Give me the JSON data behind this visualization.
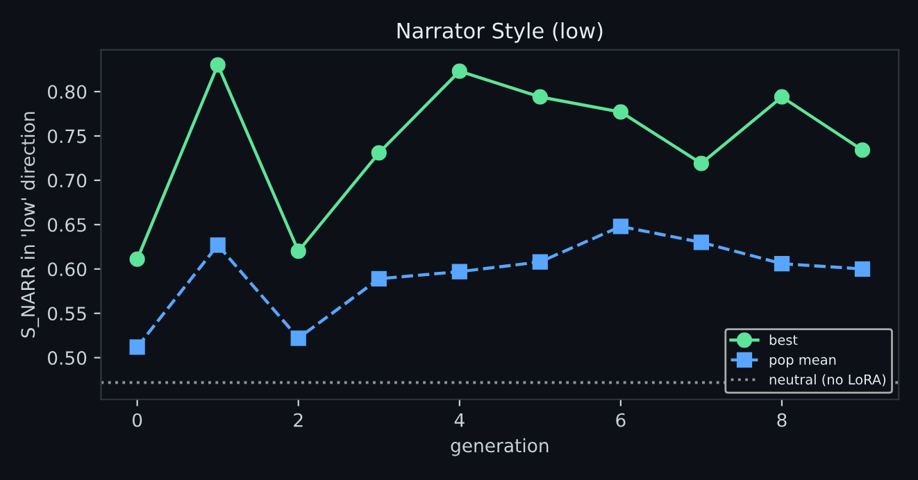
{
  "chart_data": {
    "type": "line",
    "title": "Narrator Style (low)",
    "xlabel": "generation",
    "ylabel": "S_NARR in 'low' direction",
    "x": [
      0,
      1,
      2,
      3,
      4,
      5,
      6,
      7,
      8,
      9
    ],
    "series": [
      {
        "name": "best",
        "color": "#5ee39a",
        "marker": "circle",
        "line_style": "solid",
        "values": [
          0.611,
          0.83,
          0.62,
          0.731,
          0.823,
          0.794,
          0.777,
          0.719,
          0.794,
          0.734
        ]
      },
      {
        "name": "pop mean",
        "color": "#58a6ff",
        "marker": "square",
        "line_style": "dashed",
        "values": [
          0.512,
          0.627,
          0.522,
          0.589,
          0.597,
          0.608,
          0.648,
          0.63,
          0.606,
          0.6
        ]
      }
    ],
    "ref_lines": [
      {
        "axis": "y",
        "value": 0.472,
        "label": "neutral (no LoRA)",
        "color": "#8b949e",
        "line_style": "dotted"
      }
    ],
    "xlim": [
      -0.45,
      9.45
    ],
    "ylim": [
      0.453,
      0.847
    ],
    "xticks": [
      0,
      2,
      4,
      6,
      8
    ],
    "yticks": [
      {
        "value": 0.5,
        "label": "0.50"
      },
      {
        "value": 0.55,
        "label": "0.55"
      },
      {
        "value": 0.6,
        "label": "0.60"
      },
      {
        "value": 0.65,
        "label": "0.65"
      },
      {
        "value": 0.7,
        "label": "0.70"
      },
      {
        "value": 0.75,
        "label": "0.75"
      },
      {
        "value": 0.8,
        "label": "0.80"
      }
    ],
    "grid": false,
    "legend": "bottom right"
  }
}
